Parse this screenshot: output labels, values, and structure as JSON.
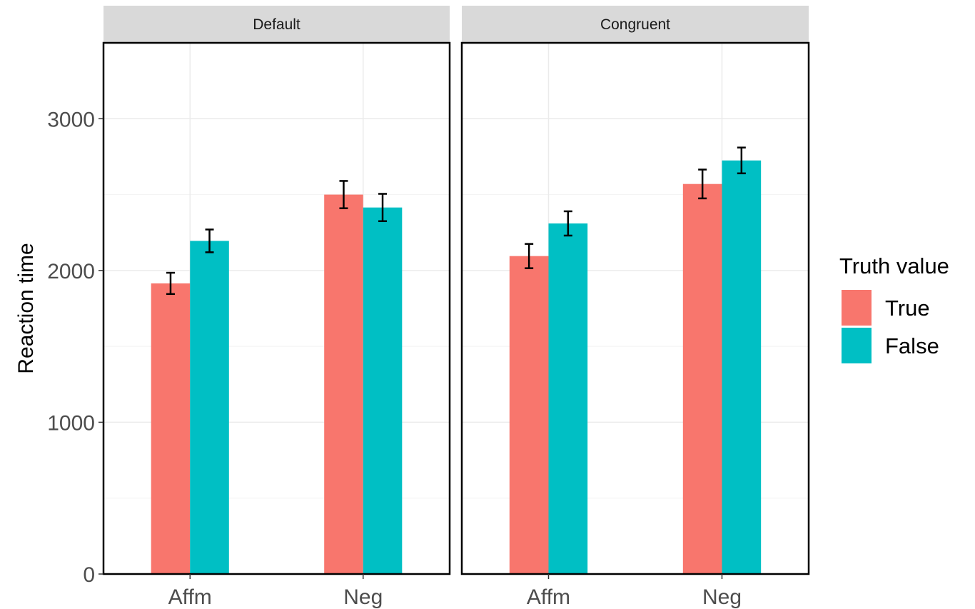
{
  "chart_data": {
    "type": "bar",
    "ylabel": "Reaction time",
    "ylim": [
      0,
      3500
    ],
    "yticks": [
      0,
      1000,
      2000,
      3000
    ],
    "grid": true,
    "legend": {
      "title": "Truth value",
      "position": "right",
      "entries": [
        "True",
        "False"
      ]
    },
    "colors": {
      "True": "#F8766D",
      "False": "#00BFC4"
    },
    "categories": [
      "Affm",
      "Neg"
    ],
    "panels": [
      {
        "strip": "Default",
        "series": [
          {
            "name": "True",
            "values": [
              1915,
              2500
            ],
            "error": [
              [
                1845,
                1985
              ],
              [
                2410,
                2590
              ]
            ]
          },
          {
            "name": "False",
            "values": [
              2195,
              2415
            ],
            "error": [
              [
                2120,
                2270
              ],
              [
                2325,
                2505
              ]
            ]
          }
        ]
      },
      {
        "strip": "Congruent",
        "series": [
          {
            "name": "True",
            "values": [
              2095,
              2570
            ],
            "error": [
              [
                2015,
                2175
              ],
              [
                2475,
                2665
              ]
            ]
          },
          {
            "name": "False",
            "values": [
              2310,
              2725
            ],
            "error": [
              [
                2230,
                2390
              ],
              [
                2640,
                2810
              ]
            ]
          }
        ]
      }
    ]
  }
}
